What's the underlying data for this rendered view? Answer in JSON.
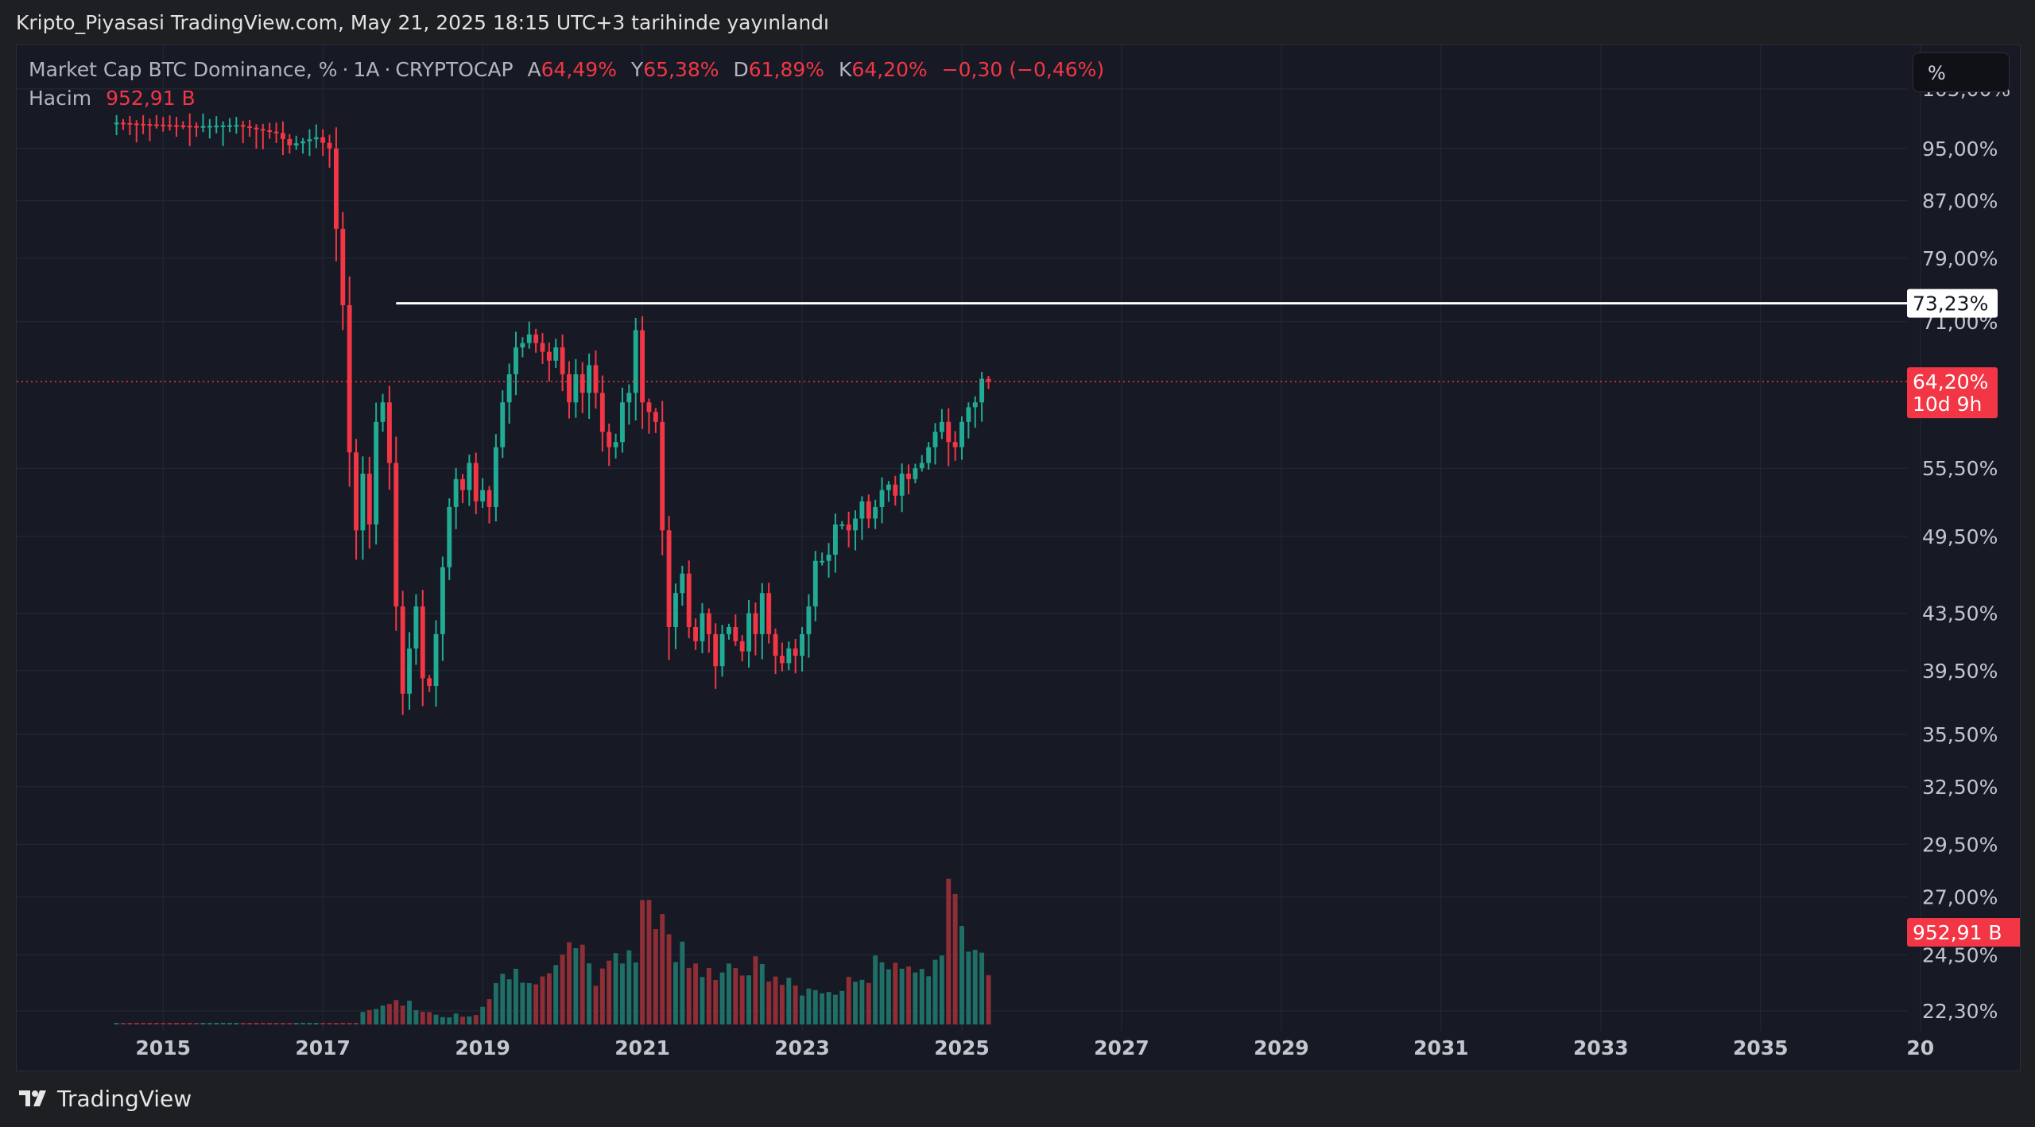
{
  "header": {
    "published_text": "Kripto_Piyasasi TradingView.com, May 21, 2025 18:15 UTC+3 tarihinde yayınlandı"
  },
  "legend": {
    "symbol_title": "Market Cap BTC Dominance, %",
    "sep": "·",
    "interval": "1A",
    "exchange": "CRYPTOCAP",
    "open_label": "A",
    "open_value": "64,49%",
    "high_label": "Y",
    "high_value": "65,38%",
    "low_label": "D",
    "low_value": "61,89%",
    "close_label": "K",
    "close_value": "64,20%",
    "change": "−0,30 (−0,46%)",
    "volume_label": "Hacim",
    "volume_value": "952,91 B"
  },
  "toolbar": {
    "scale_mode": "%"
  },
  "colors": {
    "up": "#22ab94",
    "down": "#f23645",
    "up_vol": "#1f6f66",
    "down_vol": "#8f2e36",
    "grid": "#262a36",
    "background": "#171a25",
    "resistance_line": "#ffffff",
    "axis_text": "#c3c6ce"
  },
  "chart_data": {
    "type": "candlestick",
    "interval": "1 month",
    "price_scale": "log",
    "x_range": [
      "2013-03",
      "2036-11"
    ],
    "y_range": [
      22,
      110
    ],
    "y_tick_labels": [
      "105,00%",
      "95,00%",
      "87,00%",
      "79,00%",
      "71,00%",
      "55,50%",
      "49,50%",
      "43,50%",
      "39,50%",
      "35,50%",
      "32,50%",
      "29,50%",
      "27,00%",
      "24,50%",
      "22,30%"
    ],
    "x_tick_labels": [
      "2015",
      "2017",
      "2019",
      "2021",
      "2023",
      "2025",
      "2027",
      "2029",
      "2031",
      "2033",
      "2035",
      "20"
    ],
    "horizontal_line": {
      "value": 73.23,
      "label": "73,23%",
      "start": "2017-12"
    },
    "last_price": {
      "value": 64.2,
      "label": "64,20%",
      "countdown": "10d 9h"
    },
    "last_volume": {
      "label": "952,91 B"
    },
    "anchor_points": [
      [
        "2014-06",
        99.2
      ],
      [
        "2014-09",
        99.0
      ],
      [
        "2015-06",
        98.6
      ],
      [
        "2015-12",
        98.8
      ],
      [
        "2016-06",
        97.5
      ],
      [
        "2016-08",
        95.5
      ],
      [
        "2016-12",
        96.8
      ],
      [
        "2017-02",
        95.0
      ],
      [
        "2017-03",
        83.0
      ],
      [
        "2017-04",
        73.0
      ],
      [
        "2017-05",
        57.0
      ],
      [
        "2017-06",
        50.0
      ],
      [
        "2017-07",
        55.0
      ],
      [
        "2017-08",
        50.5
      ],
      [
        "2017-09",
        60.0
      ],
      [
        "2017-10",
        62.0
      ],
      [
        "2017-11",
        56.0
      ],
      [
        "2017-12",
        44.0
      ],
      [
        "2018-01",
        38.0
      ],
      [
        "2018-02",
        41.0
      ],
      [
        "2018-03",
        44.0
      ],
      [
        "2018-04",
        39.0
      ],
      [
        "2018-05",
        38.5
      ],
      [
        "2018-06",
        42.0
      ],
      [
        "2018-07",
        47.0
      ],
      [
        "2018-08",
        52.0
      ],
      [
        "2018-09",
        54.5
      ],
      [
        "2018-10",
        53.5
      ],
      [
        "2018-11",
        56.0
      ],
      [
        "2018-12",
        52.5
      ],
      [
        "2019-01",
        53.5
      ],
      [
        "2019-02",
        52.0
      ],
      [
        "2019-03",
        57.5
      ],
      [
        "2019-04",
        62.0
      ],
      [
        "2019-05",
        65.0
      ],
      [
        "2019-06",
        68.0
      ],
      [
        "2019-07",
        68.5
      ],
      [
        "2019-08",
        69.5
      ],
      [
        "2019-09",
        68.5
      ],
      [
        "2019-10",
        67.5
      ],
      [
        "2019-11",
        66.5
      ],
      [
        "2019-12",
        68.0
      ],
      [
        "2020-01",
        65.0
      ],
      [
        "2020-02",
        62.0
      ],
      [
        "2020-03",
        65.0
      ],
      [
        "2020-04",
        63.0
      ],
      [
        "2020-05",
        66.0
      ],
      [
        "2020-06",
        63.0
      ],
      [
        "2020-07",
        59.0
      ],
      [
        "2020-08",
        57.5
      ],
      [
        "2020-09",
        58.0
      ],
      [
        "2020-10",
        62.0
      ],
      [
        "2020-11",
        63.0
      ],
      [
        "2020-12",
        70.0
      ],
      [
        "2021-01",
        62.0
      ],
      [
        "2021-02",
        61.0
      ],
      [
        "2021-03",
        60.0
      ],
      [
        "2021-04",
        50.0
      ],
      [
        "2021-05",
        42.5
      ],
      [
        "2021-06",
        45.0
      ],
      [
        "2021-07",
        46.5
      ],
      [
        "2021-08",
        42.5
      ],
      [
        "2021-09",
        41.5
      ],
      [
        "2021-10",
        43.5
      ],
      [
        "2021-11",
        42.0
      ],
      [
        "2021-12",
        39.8
      ],
      [
        "2022-01",
        42.0
      ],
      [
        "2022-02",
        42.5
      ],
      [
        "2022-03",
        41.5
      ],
      [
        "2022-04",
        40.8
      ],
      [
        "2022-05",
        43.5
      ],
      [
        "2022-06",
        42.0
      ],
      [
        "2022-07",
        45.0
      ],
      [
        "2022-08",
        42.0
      ],
      [
        "2022-09",
        40.5
      ],
      [
        "2022-10",
        40.0
      ],
      [
        "2022-11",
        41.0
      ],
      [
        "2022-12",
        40.5
      ],
      [
        "2023-01",
        42.0
      ],
      [
        "2023-02",
        44.0
      ],
      [
        "2023-03",
        47.5
      ],
      [
        "2023-04",
        47.5
      ],
      [
        "2023-05",
        48.0
      ],
      [
        "2023-06",
        50.5
      ],
      [
        "2023-07",
        50.5
      ],
      [
        "2023-08",
        50.0
      ],
      [
        "2023-09",
        51.0
      ],
      [
        "2023-10",
        52.5
      ],
      [
        "2023-11",
        51.0
      ],
      [
        "2023-12",
        52.0
      ],
      [
        "2024-01",
        53.5
      ],
      [
        "2024-02",
        54.0
      ],
      [
        "2024-03",
        53.0
      ],
      [
        "2024-04",
        55.0
      ],
      [
        "2024-05",
        54.5
      ],
      [
        "2024-06",
        55.5
      ],
      [
        "2024-07",
        56.0
      ],
      [
        "2024-08",
        57.5
      ],
      [
        "2024-09",
        59.0
      ],
      [
        "2024-10",
        60.0
      ],
      [
        "2024-11",
        58.0
      ],
      [
        "2024-12",
        57.5
      ],
      [
        "2025-01",
        60.0
      ],
      [
        "2025-02",
        61.5
      ],
      [
        "2025-03",
        62.0
      ],
      [
        "2025-04",
        64.5
      ],
      [
        "2025-05",
        64.2
      ]
    ],
    "volume_anchor_points": [
      [
        "2017-06",
        0.7
      ],
      [
        "2017-12",
        2.5
      ],
      [
        "2018-06",
        0.8
      ],
      [
        "2018-12",
        1.0
      ],
      [
        "2019-03",
        4.0
      ],
      [
        "2019-06",
        5.0
      ],
      [
        "2019-12",
        4.8
      ],
      [
        "2020-03",
        7.3
      ],
      [
        "2020-06",
        4.6
      ],
      [
        "2020-12",
        7.0
      ],
      [
        "2021-01",
        13.0
      ],
      [
        "2021-04",
        9.5
      ],
      [
        "2021-06",
        7.0
      ],
      [
        "2021-12",
        5.2
      ],
      [
        "2022-06",
        5.4
      ],
      [
        "2022-12",
        3.4
      ],
      [
        "2023-06",
        3.0
      ],
      [
        "2023-12",
        5.4
      ],
      [
        "2024-03",
        6.7
      ],
      [
        "2024-06",
        5.0
      ],
      [
        "2024-09",
        5.1
      ],
      [
        "2024-11",
        12.0
      ],
      [
        "2025-02",
        7.4
      ],
      [
        "2025-05",
        5.7
      ]
    ]
  }
}
